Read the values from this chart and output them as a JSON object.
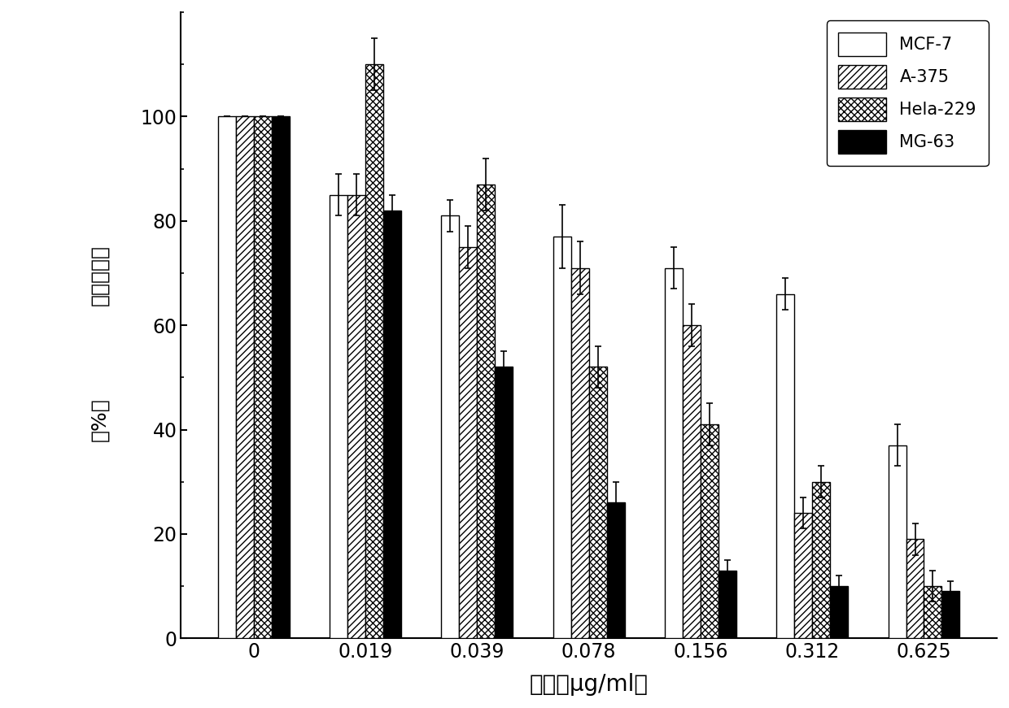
{
  "categories": [
    "0",
    "0.019",
    "0.039",
    "0.078",
    "0.156",
    "0.312",
    "0.625"
  ],
  "series": {
    "MCF-7": [
      100,
      85,
      81,
      77,
      71,
      66,
      37
    ],
    "A-375": [
      100,
      85,
      75,
      71,
      60,
      24,
      19
    ],
    "Hela-229": [
      100,
      110,
      87,
      52,
      41,
      30,
      10
    ],
    "MG-63": [
      100,
      82,
      52,
      26,
      13,
      10,
      9
    ]
  },
  "errors": {
    "MCF-7": [
      0,
      4,
      3,
      6,
      4,
      3,
      4
    ],
    "A-375": [
      0,
      4,
      4,
      5,
      4,
      3,
      3
    ],
    "Hela-229": [
      0,
      5,
      5,
      4,
      4,
      3,
      3
    ],
    "MG-63": [
      0,
      3,
      3,
      4,
      2,
      2,
      2
    ]
  },
  "series_order": [
    "MCF-7",
    "A-375",
    "Hela-229",
    "MG-63"
  ],
  "hatch_patterns": [
    "",
    "////",
    "xxxx",
    ""
  ],
  "face_colors": [
    "white",
    "white",
    "white",
    "black"
  ],
  "edge_colors": [
    "black",
    "black",
    "black",
    "black"
  ],
  "ylabel_lines": [
    "细胞存活率",
    "（%）"
  ],
  "xlabel": "浓度（μg/ml）",
  "ylim": [
    0,
    120
  ],
  "yticks": [
    0,
    20,
    40,
    60,
    80,
    100
  ],
  "bar_width": 0.16,
  "legend_labels": [
    "MCF-7",
    "A-375",
    "Hela-229",
    "MG-63"
  ],
  "figsize": [
    12.4,
    8.71
  ],
  "dpi": 100
}
